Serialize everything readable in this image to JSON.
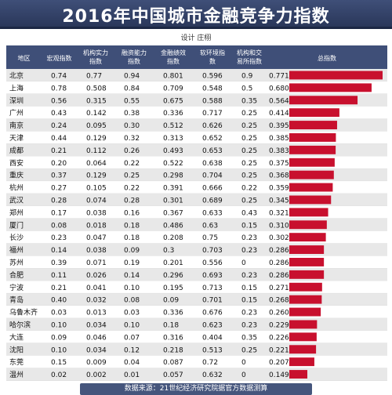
{
  "header": {
    "title": "2016年中国城市金融竞争力指数",
    "designer": "设计 庄栩"
  },
  "footer": {
    "source": "数据来源：21世纪经济研究院据官方数据测算"
  },
  "colors": {
    "bar": "#c8102e",
    "header_bg": "#3f4f78",
    "row_even": "#e8e8e8",
    "row_odd": "#ffffff"
  },
  "chart_data": {
    "type": "table",
    "title": "2016年中国城市金融竞争力指数",
    "columns": [
      "地区",
      "宏观指数",
      "机构实力指数",
      "融资能力指数",
      "金融绩效指数",
      "软环境指数",
      "机构和交易所指数",
      "总指数"
    ],
    "rows": [
      [
        "北京",
        "0.74",
        "0.77",
        "0.94",
        "0.801",
        "0.596",
        "0.9",
        "0.771"
      ],
      [
        "上海",
        "0.78",
        "0.508",
        "0.84",
        "0.709",
        "0.548",
        "0.5",
        "0.680"
      ],
      [
        "深圳",
        "0.56",
        "0.315",
        "0.55",
        "0.675",
        "0.588",
        "0.35",
        "0.564"
      ],
      [
        "广州",
        "0.43",
        "0.142",
        "0.38",
        "0.336",
        "0.717",
        "0.25",
        "0.414"
      ],
      [
        "南京",
        "0.24",
        "0.095",
        "0.30",
        "0.512",
        "0.626",
        "0.25",
        "0.395"
      ],
      [
        "天津",
        "0.44",
        "0.129",
        "0.32",
        "0.313",
        "0.652",
        "0.25",
        "0.385"
      ],
      [
        "成都",
        "0.21",
        "0.112",
        "0.26",
        "0.493",
        "0.653",
        "0.25",
        "0.383"
      ],
      [
        "西安",
        "0.20",
        "0.064",
        "0.22",
        "0.522",
        "0.638",
        "0.25",
        "0.375"
      ],
      [
        "重庆",
        "0.37",
        "0.129",
        "0.25",
        "0.298",
        "0.704",
        "0.25",
        "0.368"
      ],
      [
        "杭州",
        "0.27",
        "0.105",
        "0.22",
        "0.391",
        "0.666",
        "0.22",
        "0.359"
      ],
      [
        "武汉",
        "0.28",
        "0.074",
        "0.28",
        "0.301",
        "0.689",
        "0.25",
        "0.345"
      ],
      [
        "郑州",
        "0.17",
        "0.038",
        "0.16",
        "0.367",
        "0.633",
        "0.43",
        "0.321"
      ],
      [
        "厦门",
        "0.08",
        "0.018",
        "0.18",
        "0.486",
        "0.63",
        "0.15",
        "0.310"
      ],
      [
        "长沙",
        "0.23",
        "0.047",
        "0.18",
        "0.208",
        "0.75",
        "0.23",
        "0.302"
      ],
      [
        "福州",
        "0.14",
        "0.038",
        "0.09",
        "0.3",
        "0.703",
        "0.23",
        "0.286"
      ],
      [
        "苏州",
        "0.39",
        "0.071",
        "0.19",
        "0.201",
        "0.556",
        "0",
        "0.286"
      ],
      [
        "合肥",
        "0.11",
        "0.026",
        "0.14",
        "0.296",
        "0.693",
        "0.23",
        "0.286"
      ],
      [
        "宁波",
        "0.21",
        "0.041",
        "0.10",
        "0.195",
        "0.713",
        "0.15",
        "0.271"
      ],
      [
        "青岛",
        "0.40",
        "0.032",
        "0.08",
        "0.09",
        "0.701",
        "0.15",
        "0.268"
      ],
      [
        "乌鲁木齐",
        "0.03",
        "0.013",
        "0.03",
        "0.336",
        "0.676",
        "0.23",
        "0.260"
      ],
      [
        "哈尔滨",
        "0.10",
        "0.034",
        "0.10",
        "0.18",
        "0.623",
        "0.23",
        "0.229"
      ],
      [
        "大连",
        "0.09",
        "0.046",
        "0.07",
        "0.316",
        "0.404",
        "0.35",
        "0.226"
      ],
      [
        "沈阳",
        "0.10",
        "0.034",
        "0.12",
        "0.218",
        "0.513",
        "0.25",
        "0.221"
      ],
      [
        "东莞",
        "0.15",
        "0.009",
        "0.04",
        "0.087",
        "0.72",
        "0",
        "0.207"
      ],
      [
        "温州",
        "0.02",
        "0.002",
        "0.01",
        "0.057",
        "0.632",
        "0",
        "0.149"
      ]
    ],
    "bar_column": "总指数",
    "bar_values": [
      0.771,
      0.68,
      0.564,
      0.414,
      0.395,
      0.385,
      0.383,
      0.375,
      0.368,
      0.359,
      0.345,
      0.321,
      0.31,
      0.302,
      0.286,
      0.286,
      0.286,
      0.271,
      0.268,
      0.26,
      0.229,
      0.226,
      0.221,
      0.207,
      0.149
    ],
    "bar_range": [
      0,
      0.771
    ]
  }
}
